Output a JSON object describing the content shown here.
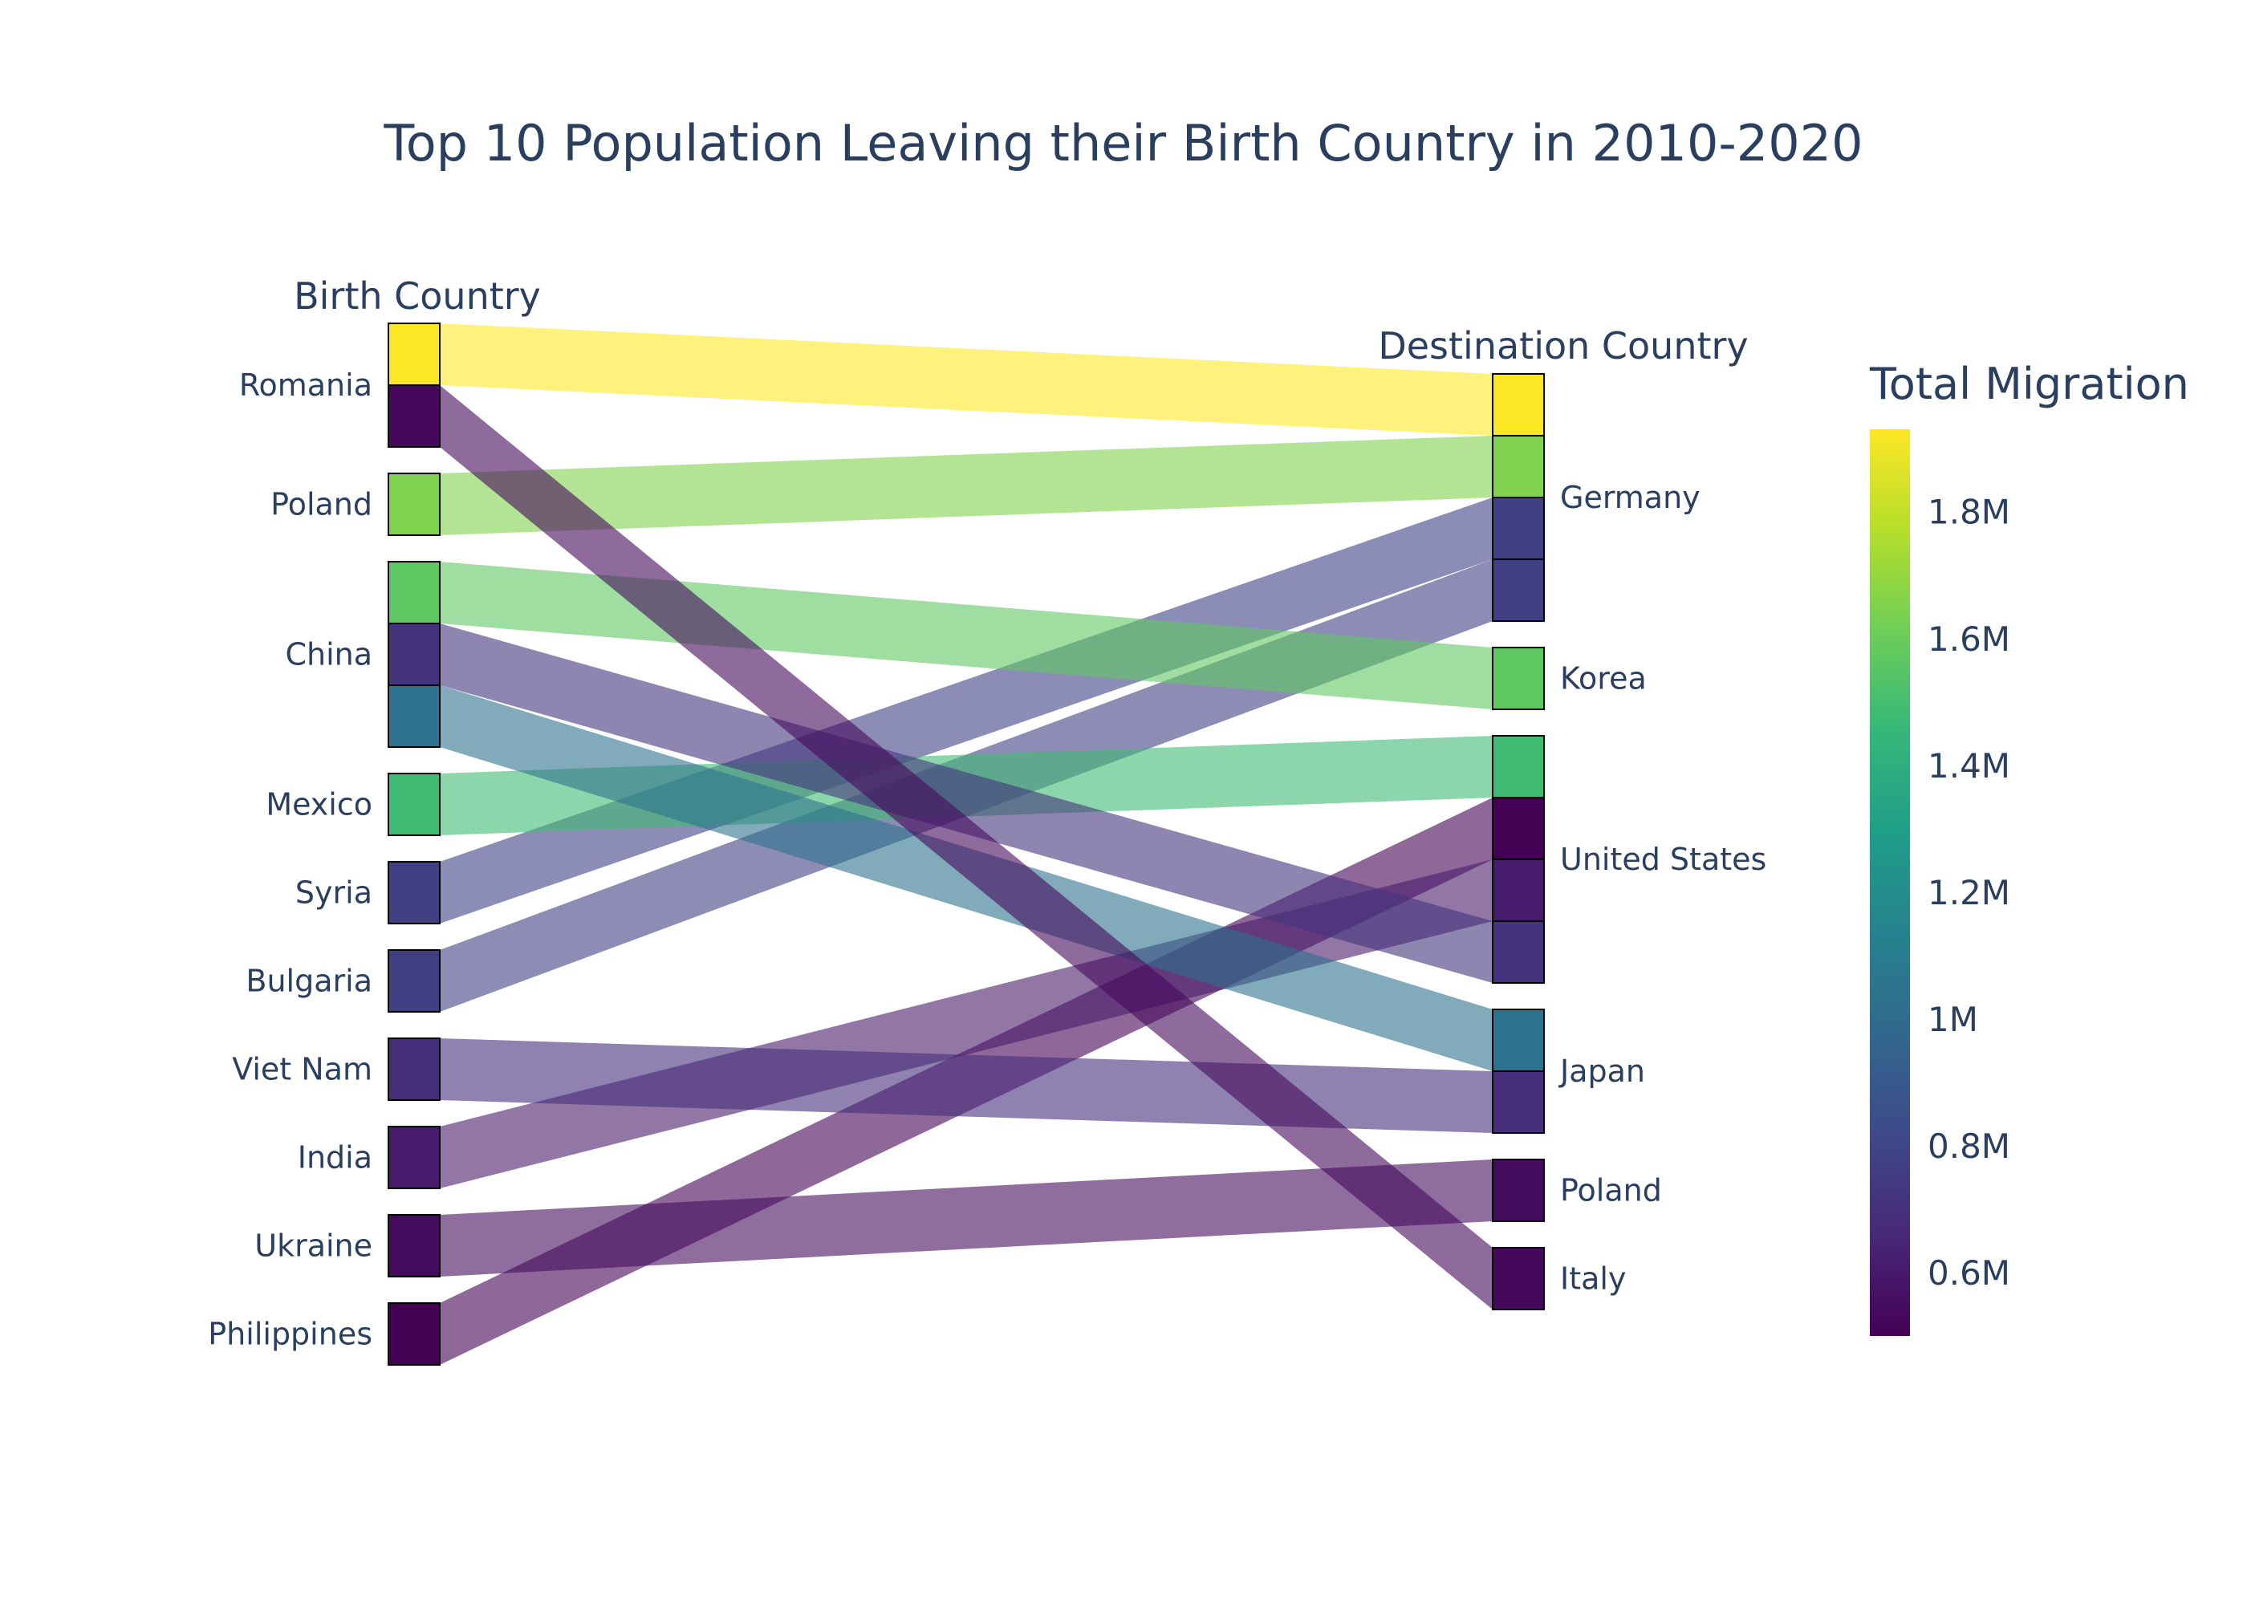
{
  "title": "Top 10 Population Leaving their Birth Country in 2010-2020",
  "chart_data": {
    "type": "sankey",
    "title": "Top 10 Population Leaving their Birth Country in 2010-2020",
    "left_header": "Birth Country",
    "right_header": "Destination Country",
    "colorbar": {
      "title": "Total Migration",
      "colorscale": "Viridis",
      "range": [
        500000,
        1930000
      ],
      "ticks": [
        600000,
        800000,
        1000000,
        1200000,
        1400000,
        1600000,
        1800000
      ],
      "tick_labels": [
        "0.6M",
        "0.8M",
        "1M",
        "1.2M",
        "1.4M",
        "1.6M",
        "1.8M"
      ]
    },
    "birth_countries": [
      "Romania",
      "Poland",
      "China",
      "Mexico",
      "Syria",
      "Bulgaria",
      "Viet Nam",
      "India",
      "Ukraine",
      "Philippines"
    ],
    "destination_countries": [
      "Germany",
      "Korea",
      "United States",
      "Japan",
      "Poland",
      "Italy"
    ],
    "flows": [
      {
        "from": "Romania",
        "to": "Germany",
        "value": 1930000
      },
      {
        "from": "Poland",
        "to": "Germany",
        "value": 1650000
      },
      {
        "from": "Syria",
        "to": "Germany",
        "value": 780000
      },
      {
        "from": "Bulgaria",
        "to": "Germany",
        "value": 770000
      },
      {
        "from": "China",
        "to": "Korea",
        "value": 1570000
      },
      {
        "from": "Mexico",
        "to": "United States",
        "value": 1480000
      },
      {
        "from": "Philippines",
        "to": "United States",
        "value": 500000
      },
      {
        "from": "India",
        "to": "United States",
        "value": 600000
      },
      {
        "from": "China",
        "to": "United States",
        "value": 710000
      },
      {
        "from": "China",
        "to": "Japan",
        "value": 1040000
      },
      {
        "from": "Viet Nam",
        "to": "Japan",
        "value": 690000
      },
      {
        "from": "Ukraine",
        "to": "Poland",
        "value": 540000
      },
      {
        "from": "Romania",
        "to": "Italy",
        "value": 530000
      }
    ]
  }
}
